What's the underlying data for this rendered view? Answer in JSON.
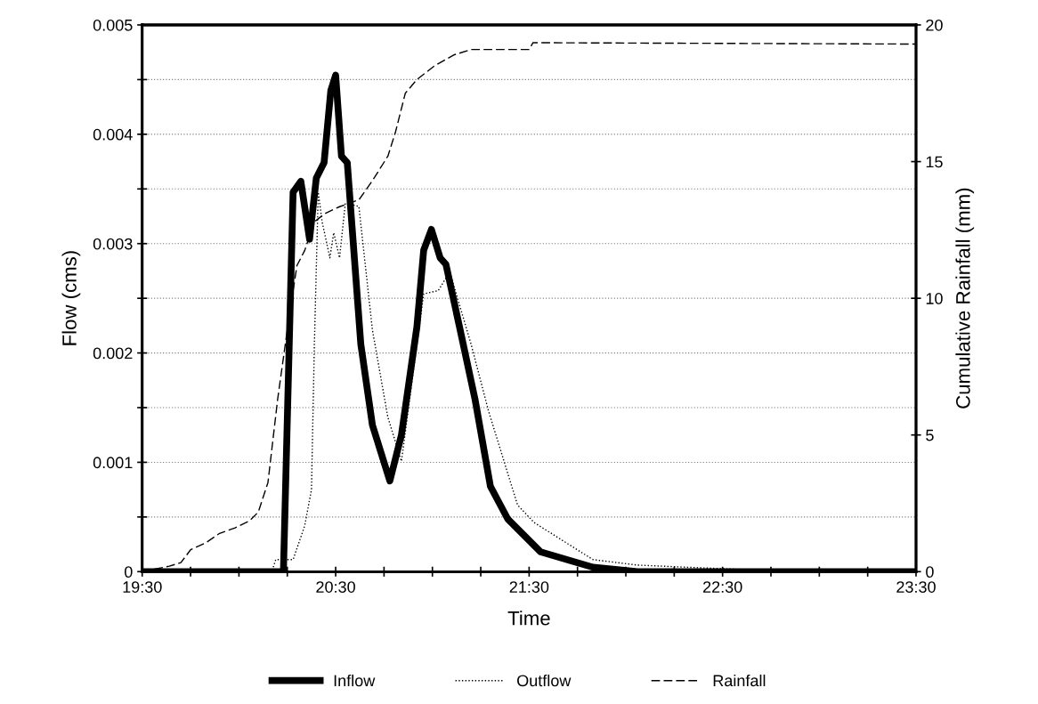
{
  "chart_data": {
    "type": "line",
    "xlabel": "Time",
    "ylabel": "Flow (cms)",
    "y2label": "Cumulative Rainfall (mm)",
    "xlim": [
      19.5,
      23.5
    ],
    "xticks": [
      {
        "value": 19.5,
        "label": "19:30"
      },
      {
        "value": 19.75,
        "label": null
      },
      {
        "value": 20.0,
        "label": null
      },
      {
        "value": 20.25,
        "label": null
      },
      {
        "value": 20.5,
        "label": "20:30"
      },
      {
        "value": 20.75,
        "label": null
      },
      {
        "value": 21.0,
        "label": null
      },
      {
        "value": 21.25,
        "label": null
      },
      {
        "value": 21.5,
        "label": "21:30"
      },
      {
        "value": 21.75,
        "label": null
      },
      {
        "value": 22.0,
        "label": null
      },
      {
        "value": 22.25,
        "label": null
      },
      {
        "value": 22.5,
        "label": "22:30"
      },
      {
        "value": 22.75,
        "label": null
      },
      {
        "value": 23.0,
        "label": null
      },
      {
        "value": 23.25,
        "label": null
      },
      {
        "value": 23.5,
        "label": "23:30"
      }
    ],
    "ylim": [
      0,
      0.005
    ],
    "yticks": [
      0,
      {
        "value": 0.0005,
        "label": null
      },
      0.001,
      {
        "value": 0.0015,
        "label": null
      },
      0.002,
      {
        "value": 0.0025,
        "label": null
      },
      0.003,
      {
        "value": 0.0035,
        "label": null
      },
      0.004,
      {
        "value": 0.0045,
        "label": null
      },
      0.005
    ],
    "y2lim": [
      0,
      20
    ],
    "y2ticks": [
      0,
      5,
      10,
      15,
      20
    ],
    "grid": "y",
    "legend": "bottom",
    "series": [
      {
        "name": "Inflow",
        "color": "#000000",
        "line_style": "solid",
        "x": [
          19.5,
          20.23,
          20.28,
          20.32,
          20.365,
          20.4,
          20.44,
          20.475,
          20.5,
          20.53,
          20.56,
          20.63,
          20.69,
          20.78,
          20.84,
          20.92,
          20.955,
          20.995,
          21.04,
          21.07,
          21.14,
          21.22,
          21.3,
          21.39,
          21.56,
          21.83,
          22.06,
          23.5
        ],
        "values": [
          0,
          0,
          0.00347,
          0.00357,
          0.00304,
          0.0036,
          0.00374,
          0.0044,
          0.00454,
          0.0038,
          0.00374,
          0.00208,
          0.00134,
          0.00083,
          0.00125,
          0.00224,
          0.00294,
          0.00313,
          0.00287,
          0.00281,
          0.00224,
          0.00158,
          0.00078,
          0.00048,
          0.00018,
          4e-05,
          0,
          0
        ]
      },
      {
        "name": "Outflow",
        "color": "#000000",
        "line_style": "dotted",
        "x": [
          19.5,
          20.17,
          20.19,
          20.28,
          20.34,
          20.375,
          20.39,
          20.41,
          20.43,
          20.47,
          20.49,
          20.52,
          20.55,
          20.62,
          20.69,
          20.77,
          20.84,
          20.92,
          20.955,
          21.03,
          21.09,
          21.2,
          21.29,
          21.44,
          21.525,
          21.83,
          22.06,
          22.32,
          22.6,
          23.5
        ],
        "values": [
          0,
          0,
          0.00011,
          0.00011,
          0.00042,
          0.00075,
          0.00208,
          0.00347,
          0.0032,
          0.00287,
          0.0031,
          0.00287,
          0.00337,
          0.00334,
          0.00221,
          0.00141,
          0.00101,
          0.00208,
          0.00254,
          0.00257,
          0.00274,
          0.00208,
          0.00147,
          0.00061,
          0.00045,
          0.00011,
          6e-05,
          4e-05,
          2e-05,
          0
        ]
      },
      {
        "name": "Rainfall",
        "color": "#000000",
        "line_style": "dashed",
        "axis": "y2",
        "x": [
          19.5,
          19.64,
          19.7,
          19.75,
          19.83,
          19.9,
          19.98,
          20.055,
          20.1,
          20.15,
          20.2,
          20.26,
          20.3,
          20.34,
          20.39,
          20.445,
          20.52,
          20.62,
          20.69,
          20.77,
          20.81,
          20.86,
          20.92,
          21.01,
          21.11,
          21.2,
          21.5,
          21.52,
          23.5
        ],
        "values": [
          0,
          0.2,
          0.33,
          0.8,
          1.06,
          1.4,
          1.6,
          1.86,
          2.18,
          3.26,
          6.3,
          9.36,
          11.2,
          11.75,
          12.8,
          13.1,
          13.35,
          13.6,
          14.3,
          15.2,
          16.1,
          17.5,
          18.0,
          18.5,
          18.9,
          19.1,
          19.1,
          19.35,
          19.3
        ]
      }
    ]
  }
}
